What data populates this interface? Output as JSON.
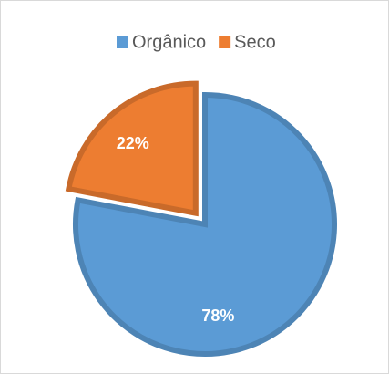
{
  "chart_data": {
    "type": "pie",
    "categories": [
      "Orgânico",
      "Seco"
    ],
    "values": [
      78,
      22
    ],
    "value_labels": [
      "78%",
      "22%"
    ],
    "colors": [
      "#5b9bd5",
      "#ed7d31"
    ],
    "legend": "top"
  }
}
